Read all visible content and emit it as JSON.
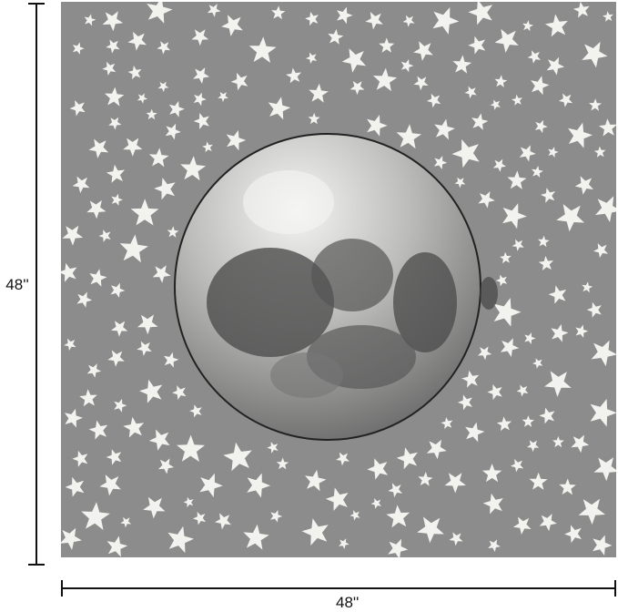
{
  "product": {
    "height_label": "48''",
    "width_label": "48''",
    "colors": {
      "background": "#8c8c8c",
      "stars": "#f2f2ee",
      "moon_light": "#e6e6e3",
      "moon_dark": "#4a4a4a"
    },
    "pattern": [
      "star-icon",
      "moon-icon"
    ]
  }
}
